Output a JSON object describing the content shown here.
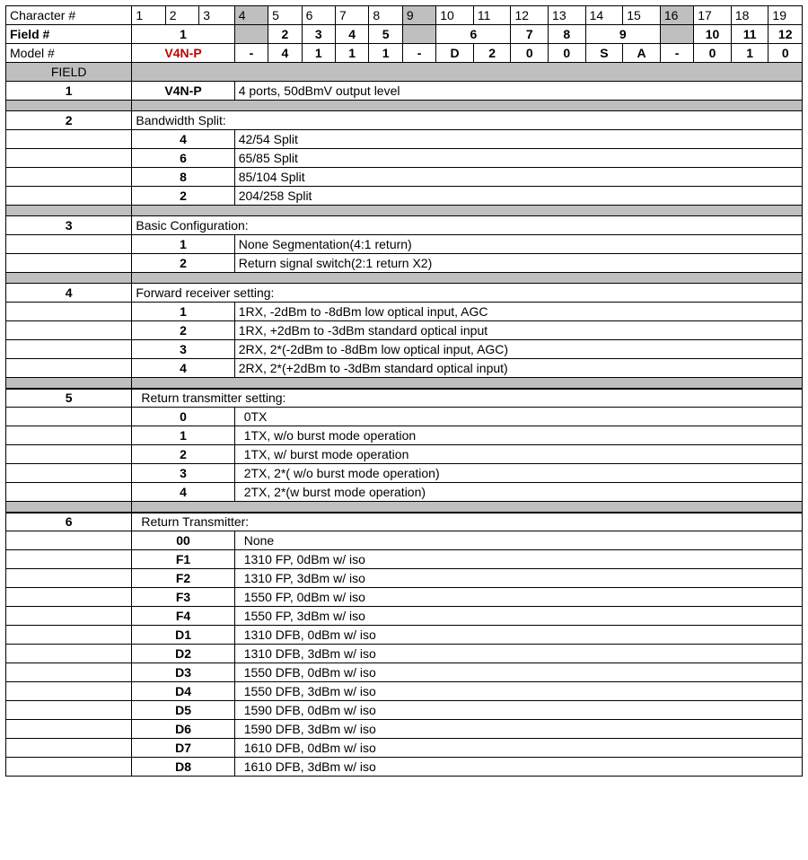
{
  "colors": {
    "grey": "#bfbfbf",
    "border": "#000000",
    "text": "#000000",
    "red": "#c00000",
    "bg": "#ffffff"
  },
  "fonts": {
    "family": "Arial",
    "base_size_pt": 11
  },
  "header": {
    "row_labels": [
      "Character #",
      "Field #",
      "Model #"
    ],
    "chars": [
      "1",
      "2",
      "3",
      "4",
      "5",
      "6",
      "7",
      "8",
      "9",
      "10",
      "11",
      "12",
      "13",
      "14",
      "15",
      "16",
      "17",
      "18",
      "19"
    ],
    "grey_char_cols": [
      4,
      9,
      16
    ],
    "fields": {
      "c1_3": "1",
      "c4": "",
      "c5": "2",
      "c6": "3",
      "c7": "4",
      "c8": "5",
      "c9": "",
      "c10_11": "6",
      "c12": "7",
      "c13": "8",
      "c14_15": "9",
      "c16": "",
      "c17": "10",
      "c18": "11",
      "c19": "12"
    },
    "model": {
      "c1_3": "V4N-P",
      "c4": "-",
      "c5": "4",
      "c6": "1",
      "c7": "1",
      "c8": "1",
      "c9": "-",
      "c10": "D",
      "c11": "2",
      "c12": "0",
      "c13": "0",
      "c14": "S",
      "c15": "A",
      "c16": "-",
      "c17": "0",
      "c18": "1",
      "c19": "0"
    }
  },
  "field_label": "FIELD",
  "sections": [
    {
      "num": "1",
      "title_code": "V4N-P",
      "title_code_bold": true,
      "title_desc": "4 ports, 50dBmV output level",
      "rows": []
    },
    {
      "num": "2",
      "title_span": "Bandwidth Split:",
      "rows": [
        {
          "code": "4",
          "desc": "42/54 Split"
        },
        {
          "code": "6",
          "desc": "65/85 Split"
        },
        {
          "code": "8",
          "desc": "85/104 Split"
        },
        {
          "code": "2",
          "desc": "204/258 Split"
        }
      ]
    },
    {
      "num": "3",
      "title_span": "Basic Configuration:",
      "rows": [
        {
          "code": "1",
          "desc": "None Segmentation(4:1 return)"
        },
        {
          "code": "2",
          "desc": "Return signal switch(2:1 return X2)"
        }
      ]
    },
    {
      "num": "4",
      "title_span": "Forward receiver setting:",
      "rows": [
        {
          "code": "1",
          "desc": "1RX, -2dBm to -8dBm low optical input, AGC"
        },
        {
          "code": "2",
          "desc": "1RX, +2dBm to -3dBm standard optical input"
        },
        {
          "code": "3",
          "desc": "2RX, 2*(-2dBm to -8dBm low optical input, AGC)"
        },
        {
          "code": "4",
          "desc": "2RX, 2*(+2dBm to -3dBm standard optical input)"
        }
      ]
    },
    {
      "num": "5",
      "title_span": "Return transmitter setting:",
      "thick": true,
      "indent": true,
      "rows": [
        {
          "code": "0",
          "desc": "0TX"
        },
        {
          "code": "1",
          "desc": "1TX, w/o burst mode operation"
        },
        {
          "code": "2",
          "desc": "1TX, w/ burst mode operation"
        },
        {
          "code": "3",
          "desc": "2TX, 2*( w/o burst mode operation)"
        },
        {
          "code": "4",
          "desc": "2TX, 2*(w burst mode operation)"
        }
      ]
    },
    {
      "num": "6",
      "title_span": "Return Transmitter:",
      "thick": true,
      "indent": true,
      "rows": [
        {
          "code": "00",
          "desc": "None"
        },
        {
          "code": "F1",
          "desc": "1310 FP, 0dBm w/ iso"
        },
        {
          "code": "F2",
          "desc": "1310 FP, 3dBm w/ iso"
        },
        {
          "code": "F3",
          "desc": "1550 FP, 0dBm w/ iso"
        },
        {
          "code": "F4",
          "desc": "1550 FP, 3dBm w/ iso"
        },
        {
          "code": "D1",
          "desc": "1310 DFB, 0dBm w/ iso"
        },
        {
          "code": "D2",
          "desc": "1310 DFB, 3dBm w/ iso"
        },
        {
          "code": "D3",
          "desc": "1550 DFB, 0dBm w/ iso"
        },
        {
          "code": "D4",
          "desc": "1550 DFB, 3dBm w/ iso"
        },
        {
          "code": "D5",
          "desc": "1590 DFB, 0dBm w/ iso"
        },
        {
          "code": "D6",
          "desc": "1590 DFB, 3dBm w/ iso"
        },
        {
          "code": "D7",
          "desc": "1610 DFB, 0dBm w/ iso"
        },
        {
          "code": "D8",
          "desc": "1610 DFB, 3dBm w/ iso"
        }
      ]
    }
  ]
}
